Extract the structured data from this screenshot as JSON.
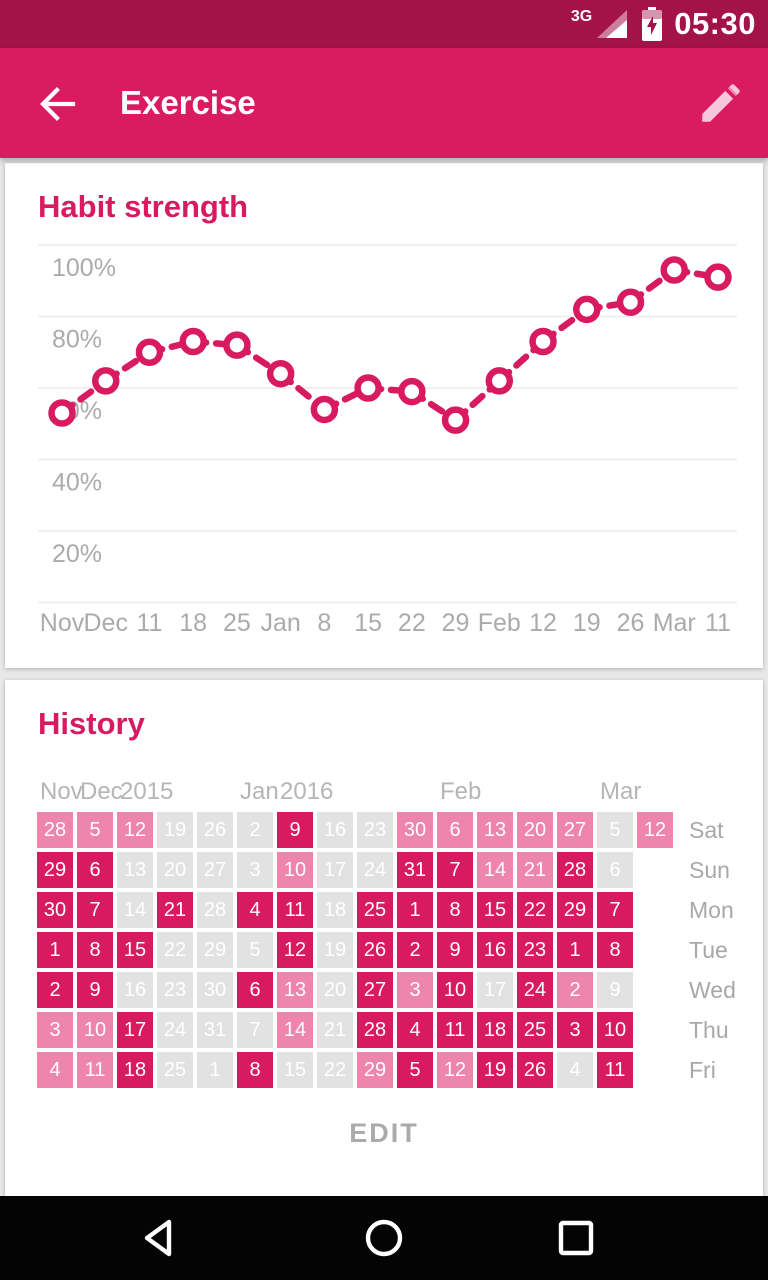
{
  "colors": {
    "status_bar": "#A31347",
    "app_bar": "#DA1B60",
    "accent": "#D81B60",
    "cell_done": "#D81B60",
    "cell_semi": "#EE85AC",
    "cell_miss": "#E2E2E2",
    "axis_text": "#ABABAB",
    "gridline": "#EFEFEF",
    "pencil": "#F8C6DC",
    "card_bg": "#FFFFFF",
    "page_bg": "#E8E8E8",
    "nav_bg": "#040404"
  },
  "status_bar": {
    "network": "3G",
    "time": "05:30",
    "icons": [
      "signal-strength-icon",
      "battery-charging-icon"
    ]
  },
  "app_bar": {
    "title": "Exercise",
    "back_icon": "arrow-left-icon",
    "edit_icon": "pencil-icon"
  },
  "chart_data": {
    "type": "line",
    "title": "Habit strength",
    "line_style": "dashed",
    "marker": "open-circle",
    "grid": true,
    "legend": "none",
    "ylim": [
      0,
      100
    ],
    "ytick_values": [
      100,
      80,
      60,
      40,
      20
    ],
    "ytick_labels": [
      "100%",
      "80%",
      "60%",
      "40%",
      "20%"
    ],
    "x_labels": [
      "Nov",
      "Dec",
      "11",
      "18",
      "25",
      "Jan",
      "8",
      "15",
      "22",
      "29",
      "Feb",
      "12",
      "19",
      "26",
      "Mar",
      "11"
    ],
    "values": [
      53,
      62,
      70,
      73,
      72,
      64,
      54,
      60,
      59,
      51,
      62,
      73,
      82,
      84,
      93,
      91
    ]
  },
  "history": {
    "title": "History",
    "edit_label": "EDIT",
    "month_labels": [
      {
        "text": "Nov",
        "col": 0
      },
      {
        "text": "Dec",
        "col": 1
      },
      {
        "text": "2015",
        "col": 2
      },
      {
        "text": "Jan",
        "col": 5
      },
      {
        "text": "2016",
        "col": 6
      },
      {
        "text": "Feb",
        "col": 10
      },
      {
        "text": "Mar",
        "col": 14
      }
    ],
    "legend_states": {
      "done": "dark",
      "semi": "medium",
      "miss": "gray",
      "none": "empty"
    },
    "rows": [
      {
        "day": "Sat",
        "cells": [
          {
            "n": 28,
            "s": "semi"
          },
          {
            "n": 5,
            "s": "semi"
          },
          {
            "n": 12,
            "s": "semi"
          },
          {
            "n": 19,
            "s": "miss"
          },
          {
            "n": 26,
            "s": "miss"
          },
          {
            "n": 2,
            "s": "miss"
          },
          {
            "n": 9,
            "s": "done"
          },
          {
            "n": 16,
            "s": "miss"
          },
          {
            "n": 23,
            "s": "miss"
          },
          {
            "n": 30,
            "s": "semi"
          },
          {
            "n": 6,
            "s": "semi"
          },
          {
            "n": 13,
            "s": "semi"
          },
          {
            "n": 20,
            "s": "semi"
          },
          {
            "n": 27,
            "s": "semi"
          },
          {
            "n": 5,
            "s": "miss"
          },
          {
            "n": 12,
            "s": "semi"
          }
        ]
      },
      {
        "day": "Sun",
        "cells": [
          {
            "n": 29,
            "s": "done"
          },
          {
            "n": 6,
            "s": "done"
          },
          {
            "n": 13,
            "s": "miss"
          },
          {
            "n": 20,
            "s": "miss"
          },
          {
            "n": 27,
            "s": "miss"
          },
          {
            "n": 3,
            "s": "miss"
          },
          {
            "n": 10,
            "s": "semi"
          },
          {
            "n": 17,
            "s": "miss"
          },
          {
            "n": 24,
            "s": "miss"
          },
          {
            "n": 31,
            "s": "done"
          },
          {
            "n": 7,
            "s": "done"
          },
          {
            "n": 14,
            "s": "semi"
          },
          {
            "n": 21,
            "s": "semi"
          },
          {
            "n": 28,
            "s": "done"
          },
          {
            "n": 6,
            "s": "miss"
          },
          {
            "n": "",
            "s": "none"
          }
        ]
      },
      {
        "day": "Mon",
        "cells": [
          {
            "n": 30,
            "s": "done"
          },
          {
            "n": 7,
            "s": "done"
          },
          {
            "n": 14,
            "s": "miss"
          },
          {
            "n": 21,
            "s": "done"
          },
          {
            "n": 28,
            "s": "miss"
          },
          {
            "n": 4,
            "s": "done"
          },
          {
            "n": 11,
            "s": "done"
          },
          {
            "n": 18,
            "s": "miss"
          },
          {
            "n": 25,
            "s": "done"
          },
          {
            "n": 1,
            "s": "done"
          },
          {
            "n": 8,
            "s": "done"
          },
          {
            "n": 15,
            "s": "done"
          },
          {
            "n": 22,
            "s": "done"
          },
          {
            "n": 29,
            "s": "done"
          },
          {
            "n": 7,
            "s": "done"
          },
          {
            "n": "",
            "s": "none"
          }
        ]
      },
      {
        "day": "Tue",
        "cells": [
          {
            "n": 1,
            "s": "done"
          },
          {
            "n": 8,
            "s": "done"
          },
          {
            "n": 15,
            "s": "done"
          },
          {
            "n": 22,
            "s": "miss"
          },
          {
            "n": 29,
            "s": "miss"
          },
          {
            "n": 5,
            "s": "miss"
          },
          {
            "n": 12,
            "s": "done"
          },
          {
            "n": 19,
            "s": "miss"
          },
          {
            "n": 26,
            "s": "done"
          },
          {
            "n": 2,
            "s": "done"
          },
          {
            "n": 9,
            "s": "done"
          },
          {
            "n": 16,
            "s": "done"
          },
          {
            "n": 23,
            "s": "done"
          },
          {
            "n": 1,
            "s": "done"
          },
          {
            "n": 8,
            "s": "done"
          },
          {
            "n": "",
            "s": "none"
          }
        ]
      },
      {
        "day": "Wed",
        "cells": [
          {
            "n": 2,
            "s": "done"
          },
          {
            "n": 9,
            "s": "done"
          },
          {
            "n": 16,
            "s": "miss"
          },
          {
            "n": 23,
            "s": "miss"
          },
          {
            "n": 30,
            "s": "miss"
          },
          {
            "n": 6,
            "s": "done"
          },
          {
            "n": 13,
            "s": "semi"
          },
          {
            "n": 20,
            "s": "miss"
          },
          {
            "n": 27,
            "s": "done"
          },
          {
            "n": 3,
            "s": "semi"
          },
          {
            "n": 10,
            "s": "done"
          },
          {
            "n": 17,
            "s": "miss"
          },
          {
            "n": 24,
            "s": "done"
          },
          {
            "n": 2,
            "s": "semi"
          },
          {
            "n": 9,
            "s": "miss"
          },
          {
            "n": "",
            "s": "none"
          }
        ]
      },
      {
        "day": "Thu",
        "cells": [
          {
            "n": 3,
            "s": "semi"
          },
          {
            "n": 10,
            "s": "semi"
          },
          {
            "n": 17,
            "s": "done"
          },
          {
            "n": 24,
            "s": "miss"
          },
          {
            "n": 31,
            "s": "miss"
          },
          {
            "n": 7,
            "s": "miss"
          },
          {
            "n": 14,
            "s": "semi"
          },
          {
            "n": 21,
            "s": "miss"
          },
          {
            "n": 28,
            "s": "done"
          },
          {
            "n": 4,
            "s": "done"
          },
          {
            "n": 11,
            "s": "done"
          },
          {
            "n": 18,
            "s": "done"
          },
          {
            "n": 25,
            "s": "done"
          },
          {
            "n": 3,
            "s": "done"
          },
          {
            "n": 10,
            "s": "done"
          },
          {
            "n": "",
            "s": "none"
          }
        ]
      },
      {
        "day": "Fri",
        "cells": [
          {
            "n": 4,
            "s": "semi"
          },
          {
            "n": 11,
            "s": "semi"
          },
          {
            "n": 18,
            "s": "done"
          },
          {
            "n": 25,
            "s": "miss"
          },
          {
            "n": 1,
            "s": "miss"
          },
          {
            "n": 8,
            "s": "done"
          },
          {
            "n": 15,
            "s": "miss"
          },
          {
            "n": 22,
            "s": "miss"
          },
          {
            "n": 29,
            "s": "semi"
          },
          {
            "n": 5,
            "s": "done"
          },
          {
            "n": 12,
            "s": "semi"
          },
          {
            "n": 19,
            "s": "done"
          },
          {
            "n": 26,
            "s": "done"
          },
          {
            "n": 4,
            "s": "miss"
          },
          {
            "n": 11,
            "s": "done"
          },
          {
            "n": "",
            "s": "none"
          }
        ]
      }
    ]
  },
  "nav_bar": {
    "icons": [
      "back-triangle-icon",
      "home-circle-icon",
      "recents-square-icon"
    ]
  }
}
